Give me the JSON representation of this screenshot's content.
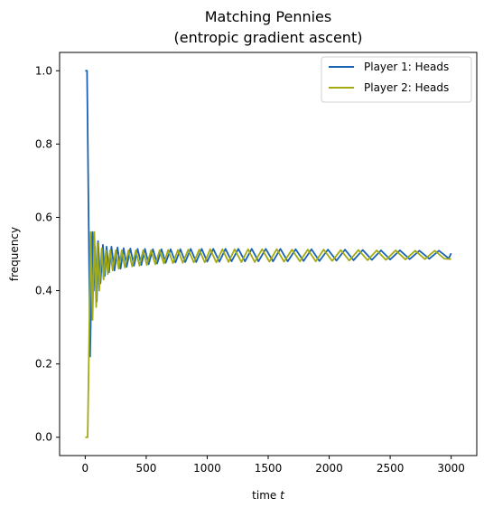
{
  "chart_data": {
    "type": "line",
    "title_line1": "Matching Pennies",
    "title_line2": "(entropic gradient ascent)",
    "xlabel": "time",
    "xlabel_var": "t",
    "ylabel": "frequency",
    "xlim": [
      -210,
      3210
    ],
    "ylim": [
      -0.05,
      1.05
    ],
    "xticks": [
      0,
      500,
      1000,
      1500,
      2000,
      2500,
      3000
    ],
    "yticks": [
      0.0,
      0.2,
      0.4,
      0.6,
      0.8,
      1.0
    ],
    "xtick_labels": [
      "0",
      "500",
      "1000",
      "1500",
      "2000",
      "2500",
      "3000"
    ],
    "ytick_labels": [
      "0.0",
      "0.2",
      "0.4",
      "0.6",
      "0.8",
      "1.0"
    ],
    "legend_position": "top-right",
    "series": [
      {
        "name": "Player 1: Heads",
        "color": "#1a63b4",
        "x": [
          0,
          15,
          40,
          60,
          70,
          80,
          95,
          105,
          125,
          145,
          160,
          175,
          195,
          215,
          240,
          265,
          290,
          315,
          340,
          370,
          400,
          430,
          460,
          490,
          520,
          555,
          590,
          625,
          660,
          700,
          740,
          780,
          820,
          865,
          910,
          955,
          1000,
          1050,
          1100,
          1150,
          1200,
          1255,
          1310,
          1365,
          1420,
          1480,
          1540,
          1600,
          1660,
          1725,
          1790,
          1855,
          1920,
          1990,
          2060,
          2130,
          2200,
          2275,
          2350,
          2425,
          2500,
          2580,
          2660,
          2740,
          2820,
          2900,
          2980,
          3000
        ],
        "values": [
          1.0,
          1.0,
          0.22,
          0.56,
          0.4,
          0.52,
          0.37,
          0.535,
          0.42,
          0.525,
          0.44,
          0.52,
          0.45,
          0.52,
          0.455,
          0.518,
          0.46,
          0.516,
          0.465,
          0.515,
          0.468,
          0.514,
          0.47,
          0.514,
          0.472,
          0.513,
          0.474,
          0.513,
          0.476,
          0.513,
          0.477,
          0.513,
          0.478,
          0.514,
          0.478,
          0.514,
          0.479,
          0.514,
          0.479,
          0.514,
          0.48,
          0.514,
          0.48,
          0.514,
          0.48,
          0.514,
          0.48,
          0.514,
          0.48,
          0.513,
          0.481,
          0.513,
          0.481,
          0.512,
          0.482,
          0.512,
          0.483,
          0.511,
          0.484,
          0.51,
          0.485,
          0.51,
          0.486,
          0.509,
          0.487,
          0.509,
          0.488,
          0.502
        ]
      },
      {
        "name": "Player 2: Heads",
        "color": "#a3ab10",
        "x": [
          0,
          20,
          45,
          60,
          75,
          90,
          100,
          115,
          135,
          150,
          170,
          185,
          205,
          225,
          250,
          275,
          300,
          325,
          355,
          385,
          415,
          445,
          475,
          505,
          540,
          575,
          610,
          645,
          680,
          720,
          760,
          800,
          845,
          890,
          935,
          980,
          1025,
          1075,
          1125,
          1175,
          1225,
          1280,
          1335,
          1390,
          1450,
          1510,
          1570,
          1630,
          1695,
          1760,
          1825,
          1890,
          1955,
          2025,
          2095,
          2165,
          2240,
          2315,
          2390,
          2465,
          2545,
          2625,
          2705,
          2785,
          2865,
          2945,
          3000
        ],
        "values": [
          0.0,
          0.0,
          0.56,
          0.32,
          0.56,
          0.355,
          0.53,
          0.4,
          0.515,
          0.43,
          0.51,
          0.445,
          0.51,
          0.455,
          0.51,
          0.46,
          0.51,
          0.463,
          0.51,
          0.466,
          0.51,
          0.468,
          0.51,
          0.47,
          0.51,
          0.472,
          0.51,
          0.474,
          0.511,
          0.475,
          0.511,
          0.476,
          0.512,
          0.477,
          0.512,
          0.477,
          0.513,
          0.477,
          0.513,
          0.478,
          0.513,
          0.478,
          0.513,
          0.478,
          0.513,
          0.479,
          0.513,
          0.479,
          0.512,
          0.48,
          0.512,
          0.48,
          0.512,
          0.481,
          0.511,
          0.482,
          0.511,
          0.483,
          0.51,
          0.484,
          0.51,
          0.485,
          0.509,
          0.486,
          0.509,
          0.487,
          0.486
        ]
      }
    ]
  }
}
